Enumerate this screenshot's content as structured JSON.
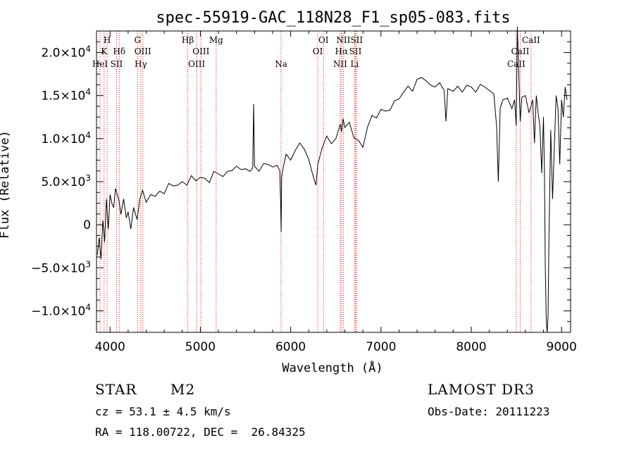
{
  "chart_data": {
    "type": "line",
    "title": "spec-55919-GAC_118N28_F1_sp05-083.fits",
    "xlabel": "Wavelength (Å)",
    "ylabel": "Flux (Relative)",
    "xlim": [
      3850,
      9100
    ],
    "ylim": [
      -12500,
      22500
    ],
    "xticks": [
      {
        "value": 4000,
        "label": "4000"
      },
      {
        "value": 5000,
        "label": "5000"
      },
      {
        "value": 6000,
        "label": "6000"
      },
      {
        "value": 7000,
        "label": "7000"
      },
      {
        "value": 8000,
        "label": "8000"
      },
      {
        "value": 9000,
        "label": "9000"
      }
    ],
    "yticks": [
      {
        "value": 20000,
        "mant": "2.0",
        "exp": "4"
      },
      {
        "value": 15000,
        "mant": "1.5",
        "exp": "4"
      },
      {
        "value": 10000,
        "mant": "1.0",
        "exp": "4"
      },
      {
        "value": 5000,
        "mant": "5.0",
        "exp": "3"
      },
      {
        "value": 0,
        "mant": "0",
        "exp": ""
      },
      {
        "value": -5000,
        "mant": "−5.0",
        "exp": "3"
      },
      {
        "value": -10000,
        "mant": "−1.0",
        "exp": "4"
      }
    ],
    "series": [
      {
        "x": [
          3860,
          3880,
          3900,
          3920,
          3940,
          3960,
          3980,
          4000,
          4020,
          4040,
          4060,
          4080,
          4100,
          4120,
          4150,
          4180,
          4200,
          4230,
          4260,
          4300,
          4330,
          4360,
          4400,
          4450,
          4500,
          4550,
          4600,
          4650,
          4700,
          4750,
          4800,
          4850,
          4900,
          4950,
          5000,
          5050,
          5100,
          5150,
          5200,
          5250,
          5300,
          5350,
          5400,
          5450,
          5500,
          5550,
          5580,
          5590,
          5600,
          5650,
          5700,
          5750,
          5800,
          5850,
          5880,
          5890,
          5895,
          5900,
          5920,
          5950,
          6000,
          6050,
          6100,
          6150,
          6200,
          6250,
          6280,
          6300,
          6350,
          6400,
          6450,
          6500,
          6550,
          6563,
          6580,
          6600,
          6650,
          6700,
          6750,
          6800,
          6850,
          6900,
          6950,
          7000,
          7050,
          7100,
          7150,
          7200,
          7250,
          7300,
          7350,
          7400,
          7450,
          7500,
          7550,
          7600,
          7650,
          7700,
          7720,
          7740,
          7800,
          7850,
          7900,
          7950,
          8000,
          8050,
          8100,
          8150,
          8200,
          8250,
          8280,
          8300,
          8320,
          8350,
          8400,
          8450,
          8480,
          8498,
          8510,
          8542,
          8560,
          8600,
          8640,
          8662,
          8680,
          8700,
          8720,
          8740,
          8760,
          8780,
          8800,
          8810,
          8820,
          8830,
          8840,
          8850,
          8860,
          8880,
          8900,
          8920,
          8940,
          8960,
          8980,
          9000,
          9020,
          9040,
          9060
        ],
        "y": [
          -3500,
          -1500,
          -4000,
          500,
          -2000,
          3000,
          -500,
          3500,
          2500,
          2000,
          4200,
          3500,
          2800,
          1200,
          3000,
          800,
          1500,
          -500,
          2000,
          600,
          3000,
          4000,
          2600,
          3500,
          3300,
          3900,
          3600,
          4800,
          4500,
          4600,
          5000,
          4600,
          5700,
          5100,
          5500,
          5400,
          4900,
          6200,
          5900,
          5600,
          6200,
          6300,
          6800,
          6400,
          6500,
          6200,
          6600,
          14000,
          6800,
          6200,
          7100,
          7000,
          6700,
          6900,
          6300,
          2000,
          -800,
          5500,
          6800,
          8200,
          7500,
          8600,
          9500,
          8800,
          7600,
          5600,
          4600,
          7000,
          9000,
          10300,
          9400,
          10000,
          11700,
          10800,
          12300,
          11300,
          11900,
          10100,
          9800,
          9000,
          11300,
          12700,
          12400,
          13400,
          13200,
          13300,
          14400,
          14600,
          15400,
          16100,
          15500,
          16900,
          17100,
          16700,
          16200,
          16000,
          16500,
          15600,
          12000,
          15800,
          15500,
          16100,
          15400,
          16200,
          16000,
          15400,
          16300,
          16000,
          15600,
          15200,
          11500,
          5000,
          13500,
          14500,
          14700,
          13500,
          14500,
          11500,
          23000,
          12000,
          14800,
          15000,
          13000,
          13800,
          14500,
          9500,
          15000,
          13000,
          11500,
          6000,
          12500,
          6500,
          -5000,
          -11000,
          -12500,
          -10500,
          -2000,
          11000,
          3000,
          9000,
          15000,
          13500,
          7000,
          14500,
          12500,
          16000,
          14500
        ]
      }
    ],
    "lines": [
      {
        "x": 3889,
        "label": "HeI",
        "row": 2
      },
      {
        "x": 3934,
        "label": "K",
        "row": 1
      },
      {
        "x": 3968,
        "label": "H",
        "row": 0
      },
      {
        "x": 4072,
        "label": "SII",
        "row": 2
      },
      {
        "x": 4102,
        "label": "Hδ",
        "row": 1
      },
      {
        "x": 4305,
        "label": "G",
        "row": 0
      },
      {
        "x": 4340,
        "label": "Hγ",
        "row": 2
      },
      {
        "x": 4363,
        "label": "OIII",
        "row": 1
      },
      {
        "x": 4861,
        "label": "Hβ",
        "row": 0
      },
      {
        "x": 4959,
        "label": "OIII",
        "row": 2
      },
      {
        "x": 5007,
        "label": "OIII",
        "row": 1
      },
      {
        "x": 5175,
        "label": "Mg",
        "row": 0
      },
      {
        "x": 5894,
        "label": "Na",
        "row": 2
      },
      {
        "x": 6300,
        "label": "OI",
        "row": 1
      },
      {
        "x": 6364,
        "label": "OI",
        "row": 0
      },
      {
        "x": 6548,
        "label": "NII",
        "row": 2
      },
      {
        "x": 6563,
        "label": "Hα",
        "row": 1
      },
      {
        "x": 6583,
        "label": "NII",
        "row": 0
      },
      {
        "x": 6708,
        "label": "Li",
        "row": 2
      },
      {
        "x": 6717,
        "label": "SII",
        "row": 1
      },
      {
        "x": 6731,
        "label": "SII",
        "row": 0
      },
      {
        "x": 8498,
        "label": "CaII",
        "row": 2
      },
      {
        "x": 8542,
        "label": "CaII",
        "row": 1
      },
      {
        "x": 8662,
        "label": "CaII",
        "row": 0
      }
    ],
    "line_color": "#ff0000",
    "spectrum_color": "#000000"
  },
  "info": {
    "class": "STAR",
    "subclass": "M2",
    "survey": "LAMOST DR3",
    "cz": "cz = 53.1 ± 4.5 km/s",
    "obs_date": "Obs-Date: 20111223",
    "coords": "RA = 118.00722, DEC =  26.84325"
  }
}
